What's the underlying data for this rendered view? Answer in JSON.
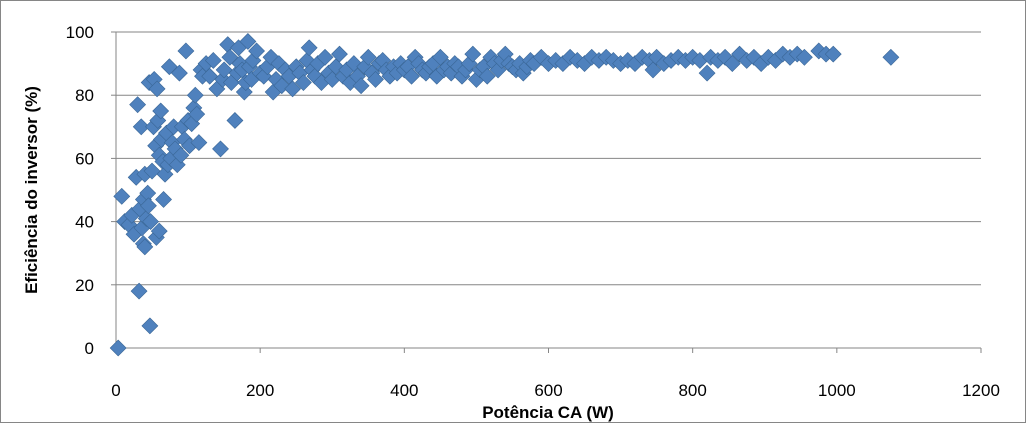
{
  "colors": {
    "marker": "#4F81BD",
    "marker_stroke": "#3A6797",
    "grid": "#868686",
    "axis": "#868686",
    "border": "#868686"
  },
  "chart_data": {
    "type": "scatter",
    "xlabel": "Potência CA (W)",
    "ylabel": "Eficiência do inversor (%)",
    "xlim": [
      0,
      1200
    ],
    "ylim": [
      0,
      100
    ],
    "x_ticks": [
      "0",
      "200",
      "400",
      "600",
      "800",
      "1000",
      "1200"
    ],
    "y_ticks": [
      "0",
      "20",
      "40",
      "60",
      "80",
      "100"
    ],
    "grid": "horizontal major gridlines",
    "legend": "none",
    "marker": "diamond",
    "series": [
      {
        "points": [
          [
            3,
            0
          ],
          [
            8,
            48
          ],
          [
            12,
            40
          ],
          [
            18,
            39
          ],
          [
            22,
            42
          ],
          [
            25,
            36
          ],
          [
            28,
            54
          ],
          [
            30,
            77
          ],
          [
            32,
            18
          ],
          [
            33,
            44
          ],
          [
            35,
            70
          ],
          [
            36,
            38
          ],
          [
            38,
            33
          ],
          [
            38,
            47
          ],
          [
            40,
            32
          ],
          [
            40,
            55
          ],
          [
            42,
            41
          ],
          [
            44,
            49
          ],
          [
            45,
            45
          ],
          [
            46,
            84
          ],
          [
            47,
            7
          ],
          [
            48,
            40
          ],
          [
            50,
            56
          ],
          [
            52,
            70
          ],
          [
            53,
            85
          ],
          [
            55,
            64
          ],
          [
            56,
            35
          ],
          [
            57,
            82
          ],
          [
            58,
            72
          ],
          [
            60,
            37
          ],
          [
            60,
            61
          ],
          [
            62,
            75
          ],
          [
            63,
            66
          ],
          [
            65,
            59
          ],
          [
            66,
            47
          ],
          [
            68,
            55
          ],
          [
            70,
            68
          ],
          [
            72,
            58
          ],
          [
            74,
            89
          ],
          [
            76,
            60
          ],
          [
            78,
            65
          ],
          [
            80,
            70
          ],
          [
            82,
            63
          ],
          [
            85,
            58
          ],
          [
            88,
            87
          ],
          [
            90,
            61
          ],
          [
            92,
            70
          ],
          [
            95,
            66
          ],
          [
            97,
            94
          ],
          [
            100,
            72
          ],
          [
            102,
            64
          ],
          [
            105,
            71
          ],
          [
            108,
            76
          ],
          [
            110,
            80
          ],
          [
            112,
            74
          ],
          [
            115,
            65
          ],
          [
            118,
            88
          ],
          [
            120,
            86
          ],
          [
            125,
            90
          ],
          [
            130,
            86
          ],
          [
            135,
            91
          ],
          [
            140,
            82
          ],
          [
            145,
            63
          ],
          [
            148,
            85
          ],
          [
            150,
            88
          ],
          [
            155,
            96
          ],
          [
            158,
            92
          ],
          [
            160,
            84
          ],
          [
            165,
            72
          ],
          [
            168,
            87
          ],
          [
            170,
            95
          ],
          [
            172,
            90
          ],
          [
            175,
            88
          ],
          [
            178,
            81
          ],
          [
            180,
            84
          ],
          [
            183,
            97
          ],
          [
            185,
            89
          ],
          [
            188,
            85
          ],
          [
            190,
            91
          ],
          [
            195,
            94
          ],
          [
            200,
            87
          ],
          [
            205,
            86
          ],
          [
            210,
            89
          ],
          [
            215,
            92
          ],
          [
            218,
            81
          ],
          [
            222,
            85
          ],
          [
            226,
            90
          ],
          [
            230,
            83
          ],
          [
            235,
            88
          ],
          [
            240,
            86
          ],
          [
            245,
            82
          ],
          [
            250,
            89
          ],
          [
            255,
            87
          ],
          [
            260,
            84
          ],
          [
            265,
            91
          ],
          [
            268,
            95
          ],
          [
            272,
            88
          ],
          [
            276,
            86
          ],
          [
            280,
            90
          ],
          [
            285,
            84
          ],
          [
            290,
            92
          ],
          [
            295,
            87
          ],
          [
            300,
            85
          ],
          [
            305,
            89
          ],
          [
            310,
            93
          ],
          [
            315,
            86
          ],
          [
            320,
            88
          ],
          [
            325,
            84
          ],
          [
            330,
            90
          ],
          [
            335,
            86
          ],
          [
            340,
            83
          ],
          [
            345,
            89
          ],
          [
            350,
            92
          ],
          [
            355,
            87
          ],
          [
            360,
            85
          ],
          [
            365,
            90
          ],
          [
            370,
            91
          ],
          [
            375,
            88
          ],
          [
            380,
            86
          ],
          [
            385,
            89
          ],
          [
            390,
            87
          ],
          [
            395,
            90
          ],
          [
            400,
            88
          ],
          [
            405,
            89
          ],
          [
            410,
            86
          ],
          [
            415,
            92
          ],
          [
            420,
            90
          ],
          [
            425,
            88
          ],
          [
            430,
            87
          ],
          [
            435,
            89
          ],
          [
            440,
            90
          ],
          [
            445,
            86
          ],
          [
            450,
            92
          ],
          [
            455,
            88
          ],
          [
            460,
            89
          ],
          [
            465,
            87
          ],
          [
            470,
            90
          ],
          [
            475,
            89
          ],
          [
            480,
            86
          ],
          [
            485,
            88
          ],
          [
            490,
            90
          ],
          [
            495,
            93
          ],
          [
            500,
            85
          ],
          [
            505,
            88
          ],
          [
            510,
            89
          ],
          [
            515,
            86
          ],
          [
            520,
            92
          ],
          [
            525,
            90
          ],
          [
            530,
            88
          ],
          [
            535,
            91
          ],
          [
            540,
            93
          ],
          [
            545,
            90
          ],
          [
            550,
            89
          ],
          [
            555,
            88
          ],
          [
            560,
            90
          ],
          [
            565,
            87
          ],
          [
            570,
            89
          ],
          [
            575,
            91
          ],
          [
            580,
            90
          ],
          [
            590,
            92
          ],
          [
            600,
            90
          ],
          [
            610,
            91
          ],
          [
            620,
            90
          ],
          [
            630,
            92
          ],
          [
            640,
            91
          ],
          [
            650,
            90
          ],
          [
            660,
            92
          ],
          [
            670,
            91
          ],
          [
            680,
            92
          ],
          [
            690,
            91
          ],
          [
            700,
            90
          ],
          [
            710,
            91
          ],
          [
            720,
            90
          ],
          [
            730,
            92
          ],
          [
            740,
            91
          ],
          [
            745,
            88
          ],
          [
            750,
            92
          ],
          [
            760,
            90
          ],
          [
            770,
            91
          ],
          [
            780,
            92
          ],
          [
            790,
            91
          ],
          [
            800,
            92
          ],
          [
            810,
            91
          ],
          [
            820,
            87
          ],
          [
            825,
            92
          ],
          [
            835,
            91
          ],
          [
            845,
            92
          ],
          [
            855,
            90
          ],
          [
            865,
            93
          ],
          [
            875,
            91
          ],
          [
            885,
            92
          ],
          [
            895,
            90
          ],
          [
            905,
            92
          ],
          [
            915,
            91
          ],
          [
            925,
            93
          ],
          [
            935,
            92
          ],
          [
            945,
            93
          ],
          [
            955,
            92
          ],
          [
            975,
            94
          ],
          [
            985,
            93
          ],
          [
            995,
            93
          ],
          [
            1075,
            92
          ]
        ]
      }
    ]
  }
}
